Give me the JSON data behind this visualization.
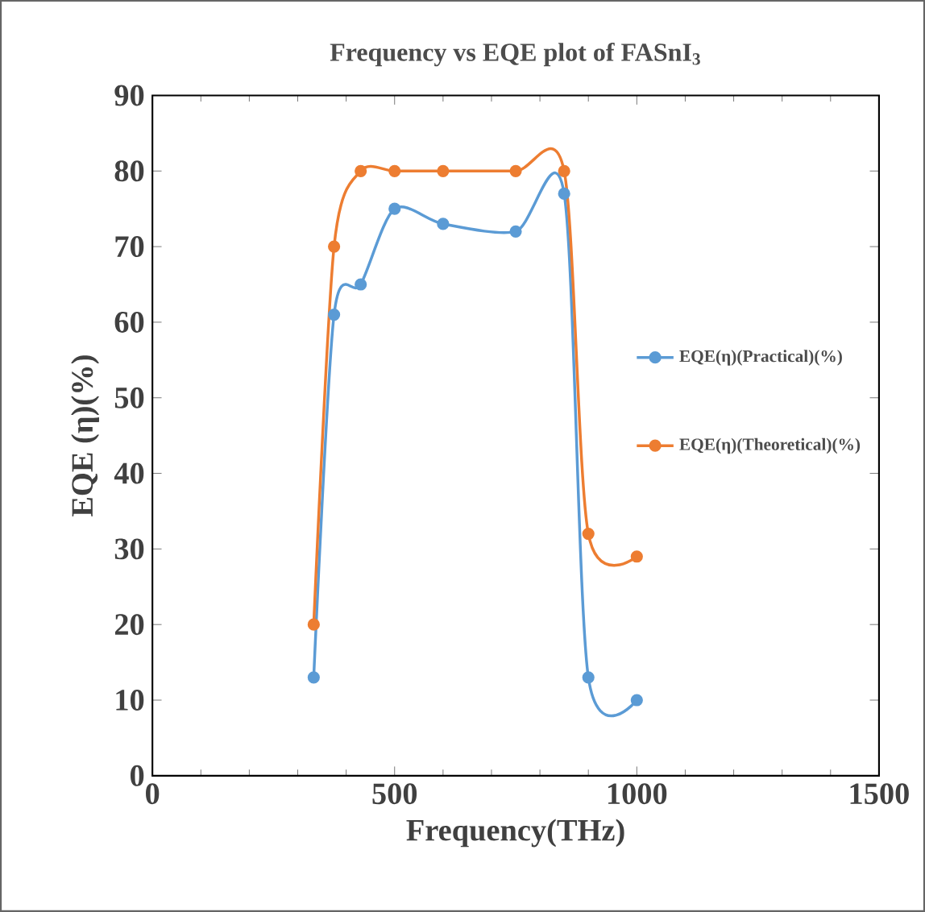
{
  "chart_data": {
    "type": "line",
    "title": "Frequency vs EQE plot of FASnI$_{3}$",
    "xlabel": "Frequency(THz)",
    "ylabel": "EQE (η)(%)",
    "xlim": [
      0,
      1500
    ],
    "xticks": [
      0,
      500,
      1000,
      1500
    ],
    "ylim": [
      0,
      90
    ],
    "yticks": [
      0,
      10,
      20,
      30,
      40,
      50,
      60,
      70,
      80,
      90
    ],
    "grid": false,
    "legend": "right",
    "marker": "circle",
    "line_style": "solid",
    "series": [
      {
        "name": "EQE(η)(Practical)(%)",
        "color": "#5b9bd5",
        "x": [
          333,
          375,
          430,
          500,
          600,
          750,
          850,
          900,
          1000
        ],
        "values": [
          13,
          61,
          65,
          75,
          73,
          72,
          77,
          13,
          10
        ]
      },
      {
        "name": "EQE(η)(Theoretical)(%)",
        "color": "#ed7d31",
        "x": [
          333,
          375,
          430,
          500,
          600,
          750,
          850,
          900,
          1000
        ],
        "values": [
          20,
          70,
          80,
          80,
          80,
          80,
          80,
          32,
          29
        ]
      }
    ]
  }
}
